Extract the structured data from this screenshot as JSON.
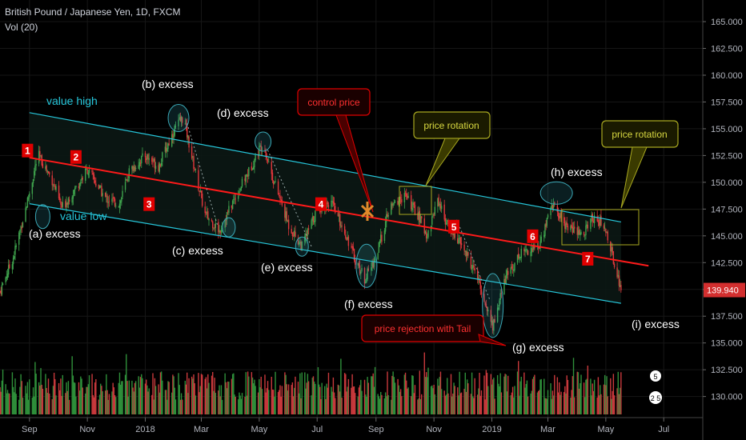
{
  "header": {
    "symbol_line": "British Pound / Japanese Yen, 1D, FXCM",
    "volume_line": "Vol (20)"
  },
  "colors": {
    "background": "#000000",
    "channel": "#26c6da",
    "control_line": "#ff1a1a",
    "bull": "#3fa34d",
    "bear": "#e0373b",
    "vol_bull": "#2f8f3a",
    "vol_bear": "#c8393c",
    "callout_red": "#e00000",
    "callout_olive": "#a8a820",
    "price_tag": "#d32f2f",
    "excess_ellipse": "#3aa7b5"
  },
  "chart_data": {
    "type": "candlestick",
    "title": "British Pound / Japanese Yen, 1D, FXCM",
    "y_ticks": [
      "165.000",
      "162.500",
      "160.000",
      "157.500",
      "155.000",
      "152.500",
      "150.000",
      "147.500",
      "145.000",
      "142.500",
      "140.000",
      "137.500",
      "135.000",
      "132.500",
      "130.000"
    ],
    "x_ticks": [
      "Sep",
      "Nov",
      "2018",
      "Mar",
      "May",
      "Jul",
      "Sep",
      "Nov",
      "2019",
      "Mar",
      "May",
      "Jul"
    ],
    "ylim": [
      129.3,
      165.9
    ],
    "last_price": "139.940",
    "price_path": [
      [
        "2017-08-01",
        139.8
      ],
      [
        "2017-08-15",
        143.0
      ],
      [
        "2017-09-01",
        149.0
      ],
      [
        "2017-09-10",
        152.6
      ],
      [
        "2017-09-25",
        150.2
      ],
      [
        "2017-10-05",
        147.6
      ],
      [
        "2017-10-20",
        149.5
      ],
      [
        "2017-11-01",
        151.2
      ],
      [
        "2017-11-20",
        148.5
      ],
      [
        "2017-12-05",
        148.0
      ],
      [
        "2017-12-15",
        151.0
      ],
      [
        "2018-01-01",
        152.5
      ],
      [
        "2018-01-15",
        151.5
      ],
      [
        "2018-02-01",
        155.0
      ],
      [
        "2018-02-10",
        156.1
      ],
      [
        "2018-02-20",
        152.0
      ],
      [
        "2018-03-05",
        147.0
      ],
      [
        "2018-03-20",
        145.5
      ],
      [
        "2018-04-05",
        148.5
      ],
      [
        "2018-04-20",
        151.0
      ],
      [
        "2018-05-05",
        153.8
      ],
      [
        "2018-05-15",
        150.5
      ],
      [
        "2018-06-01",
        146.0
      ],
      [
        "2018-06-15",
        144.0
      ],
      [
        "2018-07-01",
        147.5
      ],
      [
        "2018-07-15",
        148.2
      ],
      [
        "2018-08-01",
        145.0
      ],
      [
        "2018-08-10",
        142.8
      ],
      [
        "2018-08-20",
        141.0
      ],
      [
        "2018-09-01",
        143.0
      ],
      [
        "2018-09-15",
        147.5
      ],
      [
        "2018-10-01",
        148.8
      ],
      [
        "2018-10-15",
        147.0
      ],
      [
        "2018-10-25",
        145.0
      ],
      [
        "2018-11-05",
        148.5
      ],
      [
        "2018-11-15",
        146.0
      ],
      [
        "2018-12-01",
        144.0
      ],
      [
        "2018-12-15",
        141.5
      ],
      [
        "2019-01-02",
        136.5
      ],
      [
        "2019-01-15",
        141.0
      ],
      [
        "2019-02-01",
        143.5
      ],
      [
        "2019-02-20",
        144.0
      ],
      [
        "2019-03-05",
        148.0
      ],
      [
        "2019-03-20",
        146.0
      ],
      [
        "2019-04-05",
        145.0
      ],
      [
        "2019-04-20",
        147.0
      ],
      [
        "2019-05-01",
        145.5
      ],
      [
        "2019-05-10",
        142.5
      ],
      [
        "2019-05-17",
        139.94
      ]
    ],
    "lines": [
      {
        "name": "value high",
        "from": [
          "2017-09-01",
          156.5
        ],
        "to": [
          "2019-05-17",
          146.3
        ]
      },
      {
        "name": "value low",
        "from": [
          "2017-09-01",
          148.0
        ],
        "to": [
          "2019-05-17",
          138.7
        ]
      },
      {
        "name": "control price",
        "from": [
          "2017-09-01",
          152.3
        ],
        "to": [
          "2019-06-15",
          142.2
        ]
      }
    ],
    "level_labels": [
      {
        "text": "1",
        "at": [
          "2017-08-30",
          153.0
        ]
      },
      {
        "text": "2",
        "at": [
          "2017-10-20",
          152.4
        ]
      },
      {
        "text": "3",
        "at": [
          "2018-01-05",
          148.0
        ]
      },
      {
        "text": "4",
        "at": [
          "2018-07-05",
          148.0
        ]
      },
      {
        "text": "5",
        "at": [
          "2018-11-22",
          145.9
        ]
      },
      {
        "text": "6",
        "at": [
          "2019-02-13",
          145.0
        ]
      },
      {
        "text": "7",
        "at": [
          "2019-04-12",
          142.9
        ]
      }
    ]
  },
  "annotations": {
    "value_high": "value high",
    "value_low": "value low",
    "a_excess": "(a) excess",
    "b_excess": "(b) excess",
    "c_excess": "(c) excess",
    "d_excess": "(d) excess",
    "e_excess": "(e) excess",
    "f_excess": "(f) excess",
    "g_excess": "(g) excess",
    "h_excess": "(h) excess",
    "i_excess": "(i) excess",
    "control_price": "control price",
    "price_rotation_1": "price rotation",
    "price_rotation_2": "price rotation",
    "rejection": "price rejection with Tail"
  },
  "badges": {
    "b1": "5",
    "b2": "2 5"
  }
}
